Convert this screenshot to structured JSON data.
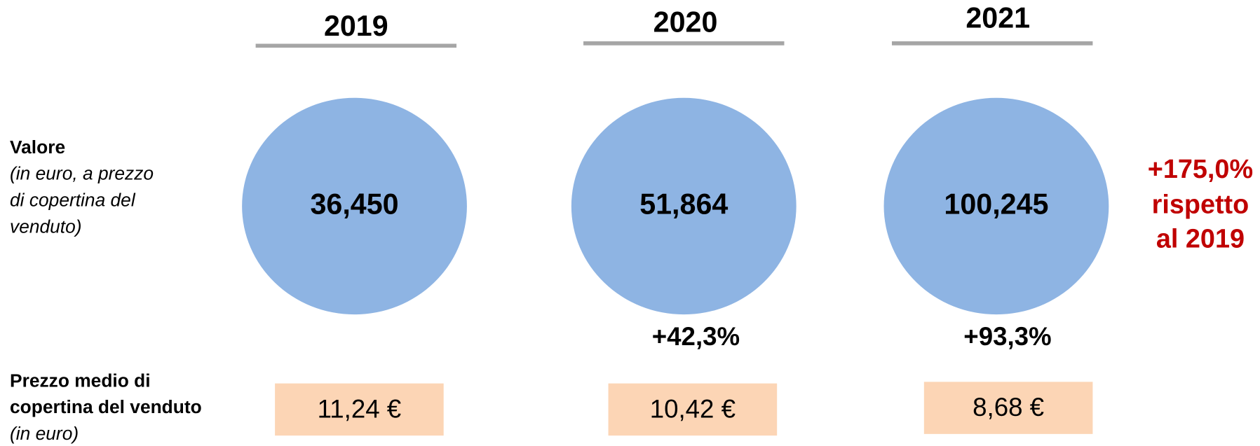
{
  "row_labels": {
    "value": {
      "title": "Valore",
      "note_lines": [
        "(in euro, a prezzo",
        "di copertina del",
        "venduto)"
      ]
    },
    "price": {
      "title_lines": [
        "Prezzo medio di",
        "copertina del venduto"
      ],
      "note": "(in euro)"
    }
  },
  "years": [
    {
      "year": "2019",
      "value": "36,450",
      "price": "11,24 €"
    },
    {
      "year": "2020",
      "value": "51,864",
      "change": "+42,3%",
      "price": "10,42 €"
    },
    {
      "year": "2021",
      "value": "100,245",
      "change": "+93,3%",
      "price": "8,68 €"
    }
  ],
  "total_change": [
    "+175,0%",
    "rispetto",
    "al 2019"
  ]
}
